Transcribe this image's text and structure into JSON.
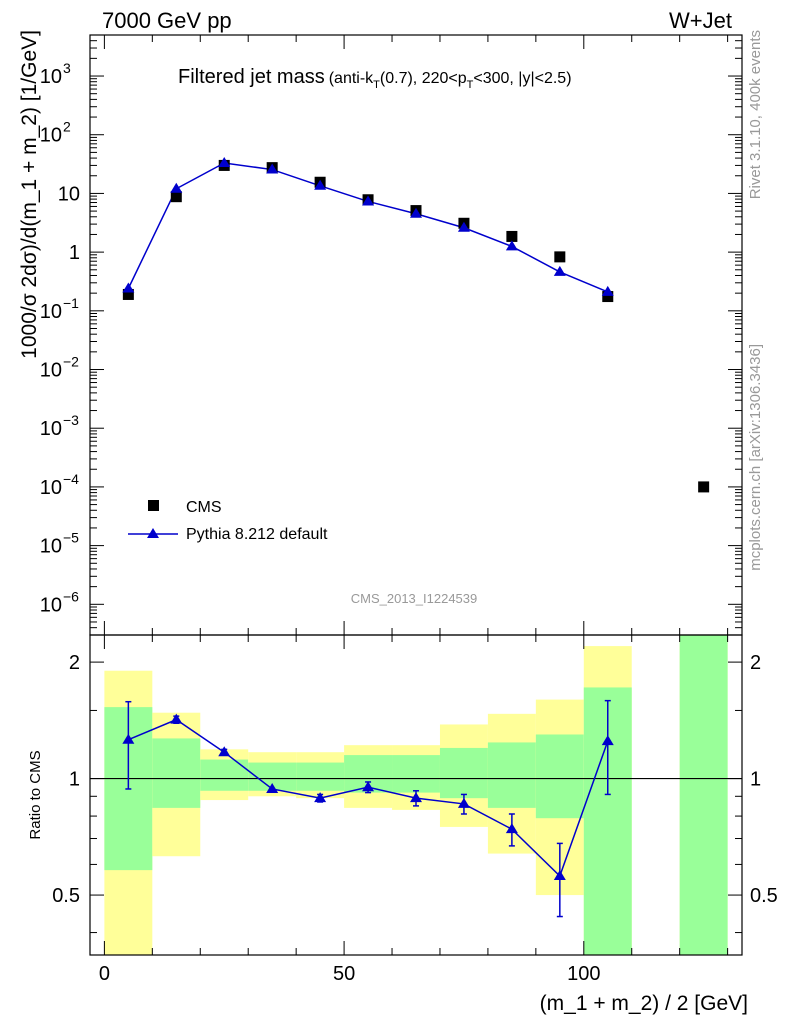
{
  "header": {
    "energy": "7000 GeV pp",
    "process": "W+Jet"
  },
  "side": {
    "rivet": "Rivet 3.1.10,  400k events",
    "mcplots": "mcplots.cern.ch [arXiv:1306.3436]"
  },
  "chart_data": [
    {
      "type": "scatter",
      "title": "Filtered jet mass",
      "subtitle": "(anti-kT(0.7), 220<pT<300, |y|<2.5)",
      "watermark": "CMS_2013_I1224539",
      "ylabel": "1000/σ 2dσ)/d(m_1 + m_2) [1/GeV]",
      "xlabel": "(m_1 + m_2) / 2 [GeV]",
      "xlim": [
        -3,
        133
      ],
      "ylim": [
        3e-07,
        5000
      ],
      "log_y": true,
      "grid": false,
      "legend_position": "lower-left",
      "yticks": [
        {
          "v": 1e-06,
          "b": "10",
          "e": "−6"
        },
        {
          "v": 1e-05,
          "b": "10",
          "e": "−5"
        },
        {
          "v": 0.0001,
          "b": "10",
          "e": "−4"
        },
        {
          "v": 0.001,
          "b": "10",
          "e": "−3"
        },
        {
          "v": 0.01,
          "b": "10",
          "e": "−2"
        },
        {
          "v": 0.1,
          "b": "10",
          "e": "−1"
        },
        {
          "v": 1,
          "b": "1",
          "e": ""
        },
        {
          "v": 10,
          "b": "10",
          "e": ""
        },
        {
          "v": 100,
          "b": "10",
          "e": "2"
        },
        {
          "v": 1000,
          "b": "10",
          "e": "3"
        }
      ],
      "series": [
        {
          "name": "CMS",
          "color": "#000000",
          "marker": "square",
          "x": [
            5,
            15,
            25,
            35,
            45,
            55,
            65,
            75,
            85,
            95,
            105,
            125
          ],
          "y": [
            0.19,
            8.8,
            30,
            27.5,
            15.5,
            7.8,
            5.1,
            3.1,
            1.85,
            0.83,
            0.175,
            0.0001
          ]
        },
        {
          "name": "Pythia 8.212 default",
          "color": "#0000cc",
          "marker": "triangle",
          "x": [
            5,
            15,
            25,
            35,
            45,
            55,
            65,
            75,
            85,
            95,
            105
          ],
          "y": [
            0.24,
            12.0,
            33.0,
            25.5,
            13.5,
            7.3,
            4.5,
            2.6,
            1.25,
            0.46,
            0.21
          ]
        }
      ]
    },
    {
      "type": "line",
      "ylabel": "Ratio to CMS",
      "xlabel": "(m_1 + m_2) / 2 [GeV]",
      "xlim": [
        -3,
        133
      ],
      "ylim": [
        0.35,
        2.35
      ],
      "yticks": [
        0.5,
        1,
        2
      ],
      "xticks": [
        0,
        50,
        100
      ],
      "reference_line": 1,
      "bands": {
        "edges": [
          [
            0,
            10
          ],
          [
            10,
            20
          ],
          [
            20,
            30
          ],
          [
            30,
            40
          ],
          [
            40,
            50
          ],
          [
            50,
            60
          ],
          [
            60,
            70
          ],
          [
            70,
            80
          ],
          [
            80,
            90
          ],
          [
            90,
            100
          ],
          [
            100,
            110
          ],
          [
            120,
            130
          ]
        ],
        "yellow": [
          [
            0.32,
            1.9
          ],
          [
            0.63,
            1.48
          ],
          [
            0.88,
            1.19
          ],
          [
            0.9,
            1.17
          ],
          [
            0.89,
            1.17
          ],
          [
            0.84,
            1.22
          ],
          [
            0.83,
            1.22
          ],
          [
            0.75,
            1.38
          ],
          [
            0.64,
            1.47
          ],
          [
            0.5,
            1.6
          ],
          [
            0.35,
            2.2
          ],
          [
            0.3,
            3.0
          ]
        ],
        "green": [
          [
            0.58,
            1.53
          ],
          [
            0.84,
            1.27
          ],
          [
            0.93,
            1.12
          ],
          [
            0.93,
            1.1
          ],
          [
            0.93,
            1.1
          ],
          [
            0.92,
            1.15
          ],
          [
            0.92,
            1.15
          ],
          [
            0.89,
            1.2
          ],
          [
            0.84,
            1.24
          ],
          [
            0.79,
            1.3
          ],
          [
            0.35,
            1.72
          ],
          [
            0.3,
            3.0
          ]
        ],
        "yellow_color": "#ffff99",
        "green_color": "#99ff99"
      },
      "series": [
        {
          "name": "Pythia 8.212 default",
          "color": "#0000cc",
          "x": [
            5,
            15,
            25,
            35,
            45,
            55,
            65,
            75,
            85,
            95,
            105
          ],
          "y": [
            1.26,
            1.42,
            1.17,
            0.94,
            0.89,
            0.95,
            0.89,
            0.86,
            0.74,
            0.56,
            1.25
          ],
          "err": [
            0.32,
            0.03,
            0.02,
            0.01,
            0.02,
            0.03,
            0.04,
            0.05,
            0.07,
            0.12,
            0.34
          ]
        }
      ]
    }
  ]
}
